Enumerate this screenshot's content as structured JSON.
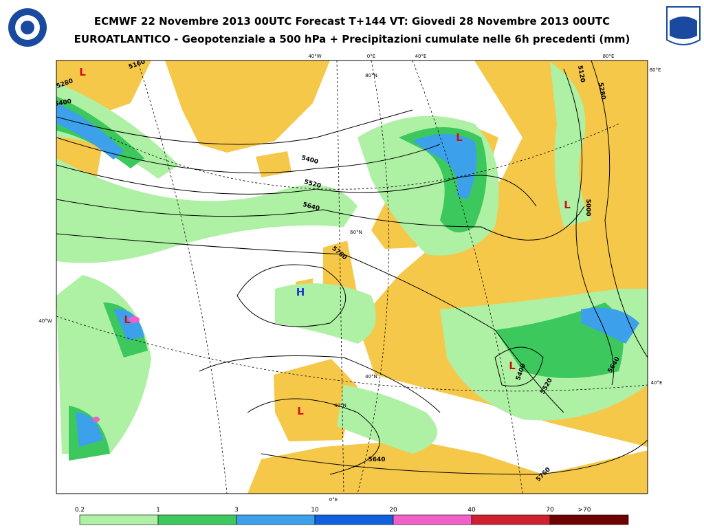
{
  "header": {
    "title_line1": "ECMWF 22 Novembre 2013 00UTC Forecast T+144 VT: Giovedi 28 Novembre 2013 00UTC",
    "title_line2": "EUROATLANTICO - Geopotenziale a 500 hPa + Precipitazioni cumulate nelle 6h precedenti (mm)"
  },
  "map": {
    "grid_labels": [
      "40°W",
      "0°E",
      "40°E",
      "80°E",
      "80°E",
      "80°N",
      "60°N",
      "40°W",
      "40°N",
      "40°N",
      "40°E",
      "0°E"
    ],
    "contour_labels": [
      "5160",
      "5280",
      "5400",
      "5400",
      "5520",
      "5640",
      "5760",
      "5640",
      "5760",
      "5520",
      "5400",
      "5640",
      "5000",
      "5120",
      "5280"
    ],
    "pressure_centers": [
      "L",
      "L",
      "L",
      "L",
      "L",
      "L",
      "H"
    ]
  },
  "legend": {
    "thresholds": [
      "0.2",
      "1",
      "3",
      "10",
      "20",
      "40",
      "70",
      ">70"
    ],
    "colors": [
      "#aef0a4",
      "#3cc85c",
      "#3ca0ea",
      "#1060e0",
      "#f060c8",
      "#d0202e",
      "#700000"
    ]
  }
}
